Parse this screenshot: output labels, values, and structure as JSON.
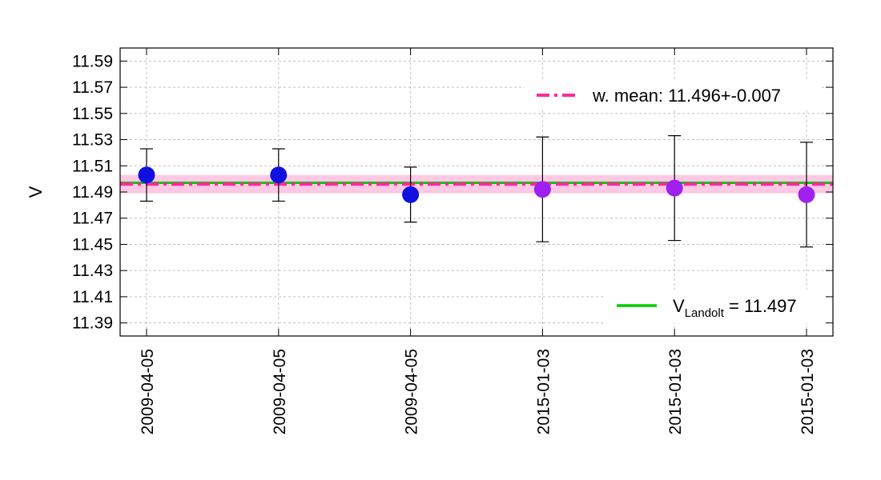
{
  "chart_data": {
    "type": "scatter",
    "title": "",
    "xlabel": "",
    "ylabel": "V",
    "ylim": [
      11.38,
      11.6
    ],
    "y_ticks": [
      "11.39",
      "11.41",
      "11.43",
      "11.45",
      "11.47",
      "11.49",
      "11.51",
      "11.53",
      "11.55",
      "11.57",
      "11.59"
    ],
    "categories": [
      "2009-04-05",
      "2009-04-05",
      "2009-04-05",
      "2015-01-03",
      "2015-01-03",
      "2015-01-03"
    ],
    "points": [
      {
        "y": 11.503,
        "err": 0.02,
        "color": "#1010e0"
      },
      {
        "y": 11.503,
        "err": 0.02,
        "color": "#1010e0"
      },
      {
        "y": 11.488,
        "err": 0.021,
        "color": "#1010e0"
      },
      {
        "y": 11.492,
        "err": 0.04,
        "color": "#a020f0"
      },
      {
        "y": 11.493,
        "err": 0.04,
        "color": "#a020f0"
      },
      {
        "y": 11.488,
        "err": 0.04,
        "color": "#a020f0"
      }
    ],
    "weighted_mean": {
      "value": 11.496,
      "err": 0.007,
      "color": "#ff2a9c",
      "band_color": "#ffc0e0"
    },
    "landolt": {
      "value": 11.497,
      "color": "#00cc00"
    },
    "grid": true,
    "legend": [
      {
        "label": "w. mean: 11.496+-0.007",
        "style": "dash-dot",
        "color": "#ff2a9c",
        "placement": "top-right"
      },
      {
        "label_main": "V",
        "label_sub": "Landolt",
        "label_rest": " = 11.497",
        "style": "solid",
        "color": "#00cc00",
        "placement": "bottom-right"
      }
    ]
  }
}
